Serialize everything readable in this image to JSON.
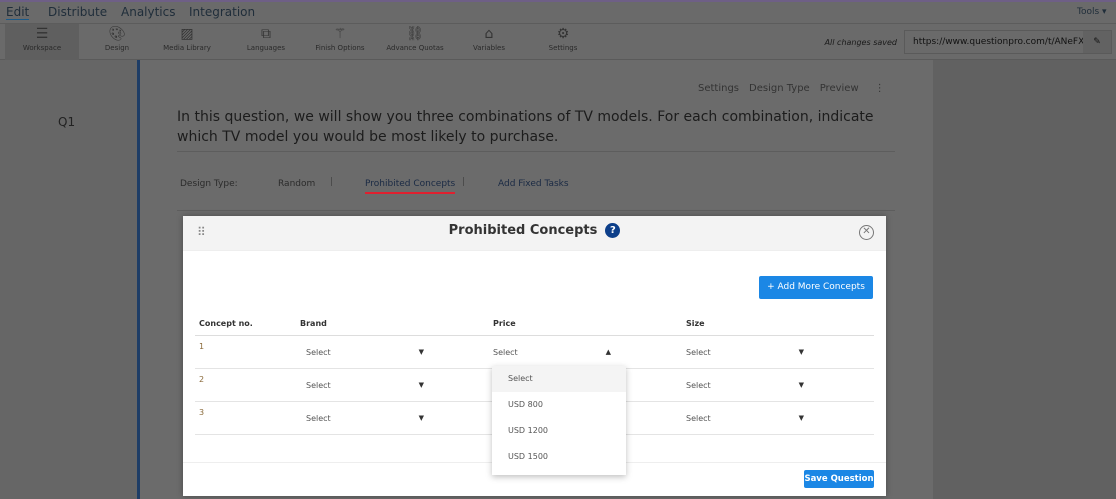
{
  "menu": {
    "items": [
      "Edit",
      "Distribute",
      "Analytics",
      "Integration"
    ],
    "tools": "Tools ▾"
  },
  "toolbar": {
    "items": [
      {
        "label": "Workspace",
        "icon": "list-icon"
      },
      {
        "label": "Design",
        "icon": "palette-icon"
      },
      {
        "label": "Media Library",
        "icon": "image-icon"
      },
      {
        "label": "Languages",
        "icon": "translate-icon"
      },
      {
        "label": "Finish Options",
        "icon": "magic-wand-icon"
      },
      {
        "label": "Advance Quotas",
        "icon": "link-icon"
      },
      {
        "label": "Variables",
        "icon": "tag-icon"
      },
      {
        "label": "Settings",
        "icon": "gear-icon"
      }
    ],
    "saved": "All changes saved",
    "url": "https://www.questionpro.com/t/ANeFXZ"
  },
  "question": {
    "number": "Q1",
    "links": [
      "Settings",
      "Design Type",
      "Preview"
    ],
    "text": "In this question, we will show you three combinations of TV models. For each combination, indicate which TV model you would be most likely to purchase.",
    "design_label": "Design Type:",
    "design_tabs": [
      "Random",
      "Prohibited Concepts",
      "Add Fixed Tasks"
    ]
  },
  "modal": {
    "title": "Prohibited Concepts",
    "help": "?",
    "add_button": "+ Add More Concepts",
    "columns": [
      "Concept no.",
      "Brand",
      "Price",
      "Size"
    ],
    "rows": [
      {
        "num": "1",
        "brand": "Select",
        "price": "Select",
        "size": "Select"
      },
      {
        "num": "2",
        "brand": "Select",
        "price": "",
        "size": "Select"
      },
      {
        "num": "3",
        "brand": "Select",
        "price": "",
        "size": "Select"
      }
    ],
    "dropdown": [
      "Select",
      "USD 800",
      "USD 1200",
      "USD 1500"
    ],
    "save": "Save Question"
  },
  "colors": {
    "accent": "#1b87e5",
    "help": "#0d3f8a",
    "active_tab_underline": "#e0202f"
  }
}
